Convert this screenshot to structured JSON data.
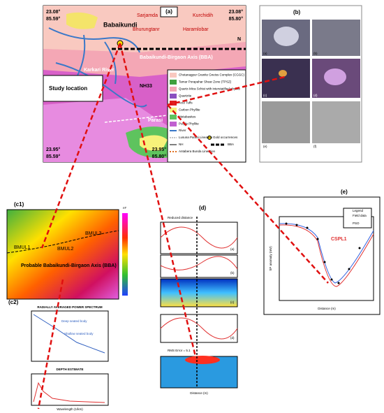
{
  "panel_a": {
    "label": "(a)",
    "coords": {
      "tl_lat": "23.08°",
      "tl_lon": "85.59°",
      "tr_lat": "23.08°",
      "tr_lon": "85.80°",
      "bl_lat": "23.95°",
      "bl_lon": "85.59°",
      "br_lat": "23.95°",
      "br_lon": "85.80°"
    },
    "places": {
      "babaikundi": "Babaikundi",
      "sarjamda": "Sarjamda",
      "kurchidih": "Kurchidih",
      "bhurungtanr": "Bhurungtanr",
      "haramlobar": "Haramlobar",
      "north": "N",
      "axis": "Babaikundi-Birgaon Axis (BBA)",
      "river": "Karkari River",
      "nh": "NH33",
      "study": "Study location",
      "parasi": "Parasi"
    },
    "legend": [
      "Chotanagpur Granite Gneiss Complex (CGGC)",
      "Tamar Porapahar Shear Zone (TPSZ)",
      "Quartz-Mica Schist with interstatified phyllite",
      "Quartzite",
      "Acid Tuffs",
      "Carbon Phyllite",
      "Metabasites",
      "Purple Phyllite",
      "River",
      "Lusuna Parasi Lineation"
    ],
    "legend_extra": {
      "gold": "Gold occurrences",
      "nh": "NH",
      "bba": "BBA",
      "antabera": "Antabera Bunda Lineation"
    }
  },
  "panel_b": {
    "label": "(b)",
    "sublabels": [
      "(a)",
      "(b)",
      "(c)",
      "(d)",
      "(e)",
      "(f)"
    ]
  },
  "panel_c1": {
    "label": "(c1)",
    "unit": "nT",
    "bodies": [
      "BMUL1",
      "BMUL2",
      "BMUL3"
    ],
    "axis": "Probable Babaikundi-Birgaon Axis (BBA)"
  },
  "panel_c2": {
    "label": "(c2)",
    "title1": "RADIALLY AVERAGED POWER SPECTRUM",
    "deep": "Deep seated body",
    "shallow": "Shallow seated body",
    "title2": "DEPTH ESTIMATE",
    "xlabel": "Wavelength (1/km)"
  },
  "panel_d": {
    "label": "(d)",
    "top": "Reduced distance",
    "sub": [
      "(a)",
      "(b)",
      "(c)",
      "(d)"
    ],
    "rms": "RMS Error = 5.1",
    "xlabel": "Distance (m)"
  },
  "panel_e": {
    "label": "(e)",
    "legend": "Legend",
    "field": "Field data",
    "pso": "PSO",
    "ylabel": "SP anomaly (mV)",
    "xlabel": "Distance (m)",
    "profile": "CSPL1"
  }
}
